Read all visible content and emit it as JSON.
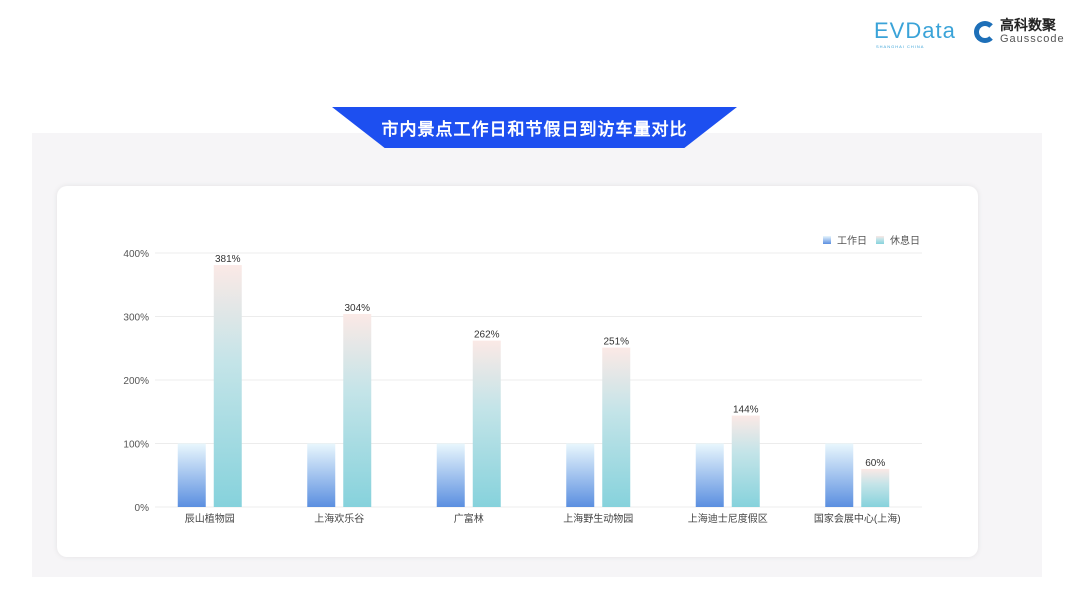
{
  "header": {
    "logo_evdata": "EVData",
    "logo_evdata_sub": "SHANGHAI CHINA",
    "logo_gauss_cn": "高科数聚",
    "logo_gauss_en": "Gausscode"
  },
  "title": "市内景点工作日和节假日到访车量对比",
  "chart_data": {
    "type": "bar",
    "title": "市内景点工作日和节假日到访车量对比",
    "categories": [
      "辰山植物园",
      "上海欢乐谷",
      "广富林",
      "上海野生动物园",
      "上海迪士尼度假区",
      "国家会展中心(上海)"
    ],
    "series": [
      {
        "name": "工作日",
        "values": [
          100,
          100,
          100,
          100,
          100,
          100
        ],
        "color": "#5b8fe0"
      },
      {
        "name": "休息日",
        "values": [
          381,
          304,
          262,
          251,
          144,
          60
        ],
        "color": "#86d2dc",
        "labels": [
          "381%",
          "304%",
          "262%",
          "251%",
          "144%",
          "60%"
        ]
      }
    ],
    "ylim": [
      0,
      400
    ],
    "yticks": [
      "0%",
      "100%",
      "200%",
      "300%",
      "400%"
    ],
    "grid": true,
    "legend": "top-right"
  }
}
